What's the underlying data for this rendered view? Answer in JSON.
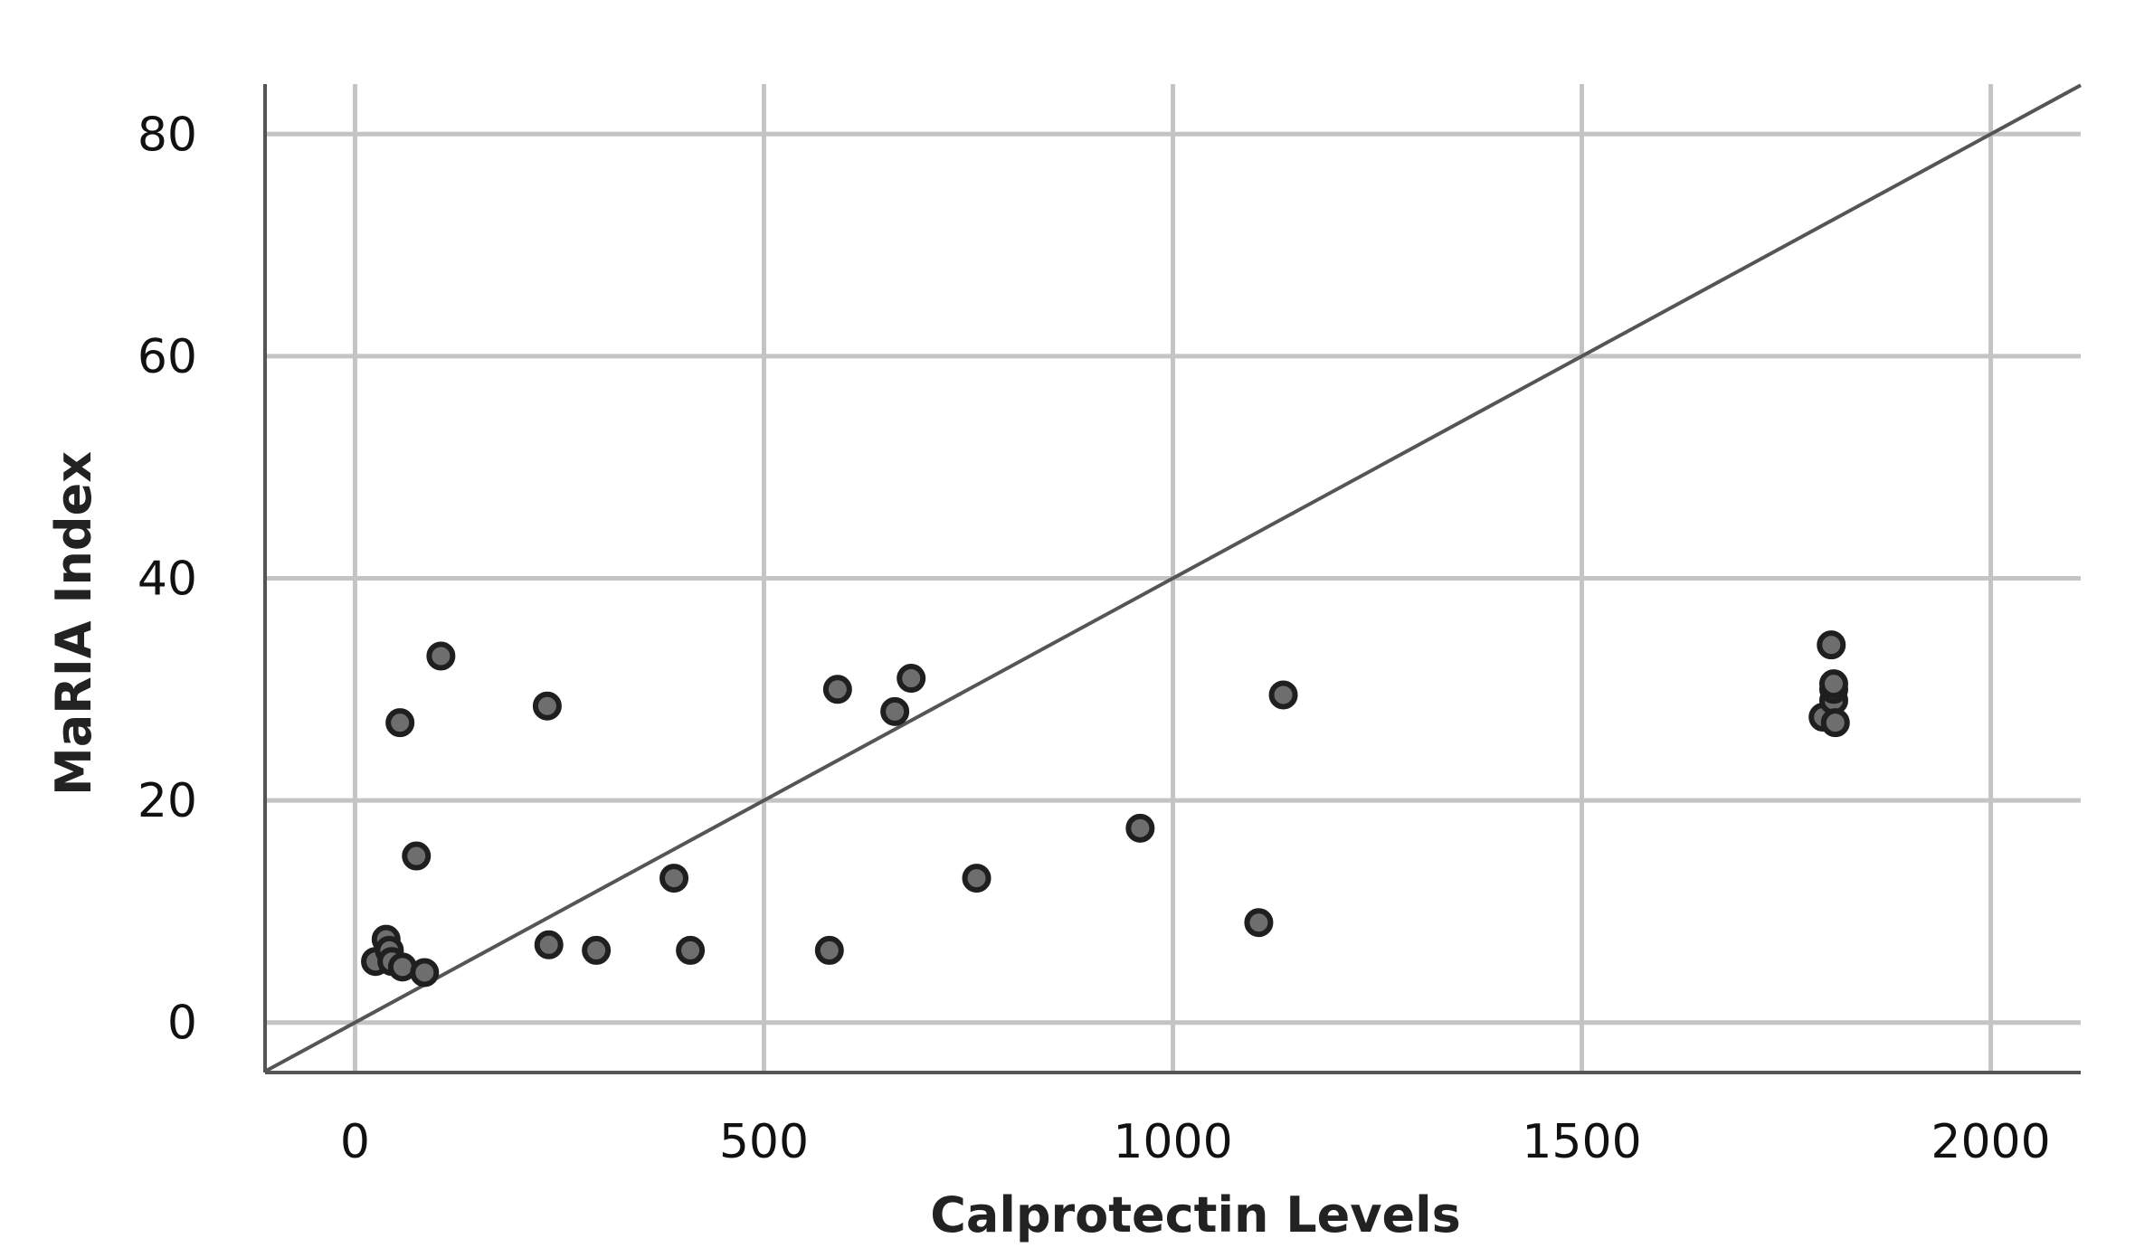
{
  "chart_data": {
    "type": "scatter",
    "title": "",
    "xlabel": "Calprotectin Levels",
    "ylabel": "MaRIA Index",
    "xlim": [
      -110,
      2110
    ],
    "ylim": [
      -4.5,
      84.5
    ],
    "xticks": [
      "0",
      "500",
      "1000",
      "1500",
      "2000"
    ],
    "yticks": [
      "0",
      "20",
      "40",
      "60",
      "80"
    ],
    "grid": true,
    "legend": "none",
    "reference_line": {
      "type": "identity",
      "slope": 0.04,
      "intercept": 0
    },
    "colors": {
      "point_fill": "#6e6e6e",
      "point_edge": "#1f1f1f",
      "grid": "#c4c4c4",
      "line": "#555555"
    },
    "series": [
      {
        "x": [
          25,
          38,
          42,
          45,
          55,
          58,
          75,
          85,
          105,
          235,
          237,
          295,
          390,
          410,
          580,
          590,
          660,
          680,
          760,
          960,
          1105,
          1135,
          1795,
          1805,
          1808,
          1808,
          1808,
          1810
        ],
        "y": [
          5.5,
          7.5,
          6.5,
          5.5,
          27,
          5,
          15,
          4.5,
          33,
          28.5,
          7,
          6.5,
          13,
          6.5,
          6.5,
          30,
          28,
          31,
          13,
          17.5,
          9,
          29.5,
          27.5,
          34,
          29,
          30,
          30.5,
          27
        ]
      }
    ]
  }
}
